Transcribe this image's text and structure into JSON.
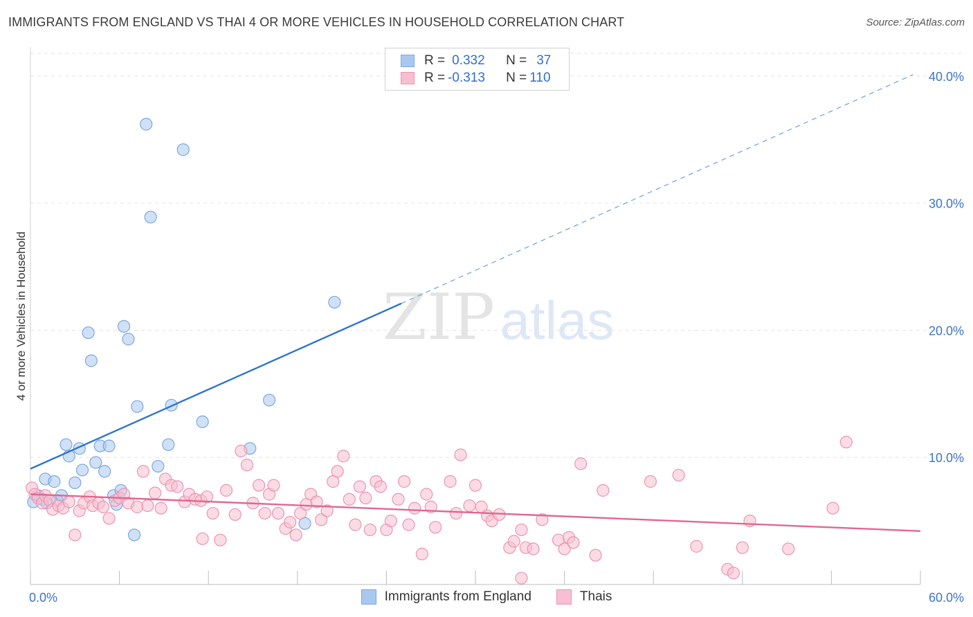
{
  "header": {
    "title": "IMMIGRANTS FROM ENGLAND VS THAI 4 OR MORE VEHICLES IN HOUSEHOLD CORRELATION CHART",
    "source": "Source: ZipAtlas.com"
  },
  "watermark": {
    "zip": "ZIP",
    "atlas": "atlas"
  },
  "legend": {
    "series": [
      {
        "r_label": "R =",
        "r_value": "0.332",
        "n_label": "N =",
        "n_value": "37",
        "color": "#a9c8f0",
        "border": "#7aa7e0"
      },
      {
        "r_label": "R =",
        "r_value": "-0.313",
        "n_label": "N =",
        "n_value": "110",
        "color": "#f7bfd0",
        "border": "#ec94b0"
      }
    ]
  },
  "bottom_legend": [
    "Immigrants from England",
    "Thais"
  ],
  "chart_data": {
    "type": "scatter",
    "title": "IMMIGRANTS FROM ENGLAND VS THAI 4 OR MORE VEHICLES IN HOUSEHOLD CORRELATION CHART",
    "xlabel": "",
    "ylabel": "4 or more Vehicles in Household",
    "xlim": [
      0,
      60
    ],
    "ylim": [
      0,
      42
    ],
    "x_tick_labels": [
      {
        "value": 0,
        "label": "0.0%"
      },
      {
        "value": 60,
        "label": "60.0%"
      }
    ],
    "y_tick_labels": [
      {
        "value": 10,
        "label": "10.0%"
      },
      {
        "value": 20,
        "label": "20.0%"
      },
      {
        "value": 30,
        "label": "30.0%"
      },
      {
        "value": 40,
        "label": "40.0%"
      }
    ],
    "grid": true,
    "legend_position": "top-center",
    "series": [
      {
        "name": "Immigrants from England",
        "color": "#7aa7e0",
        "fill": "#a9c8f0",
        "trend": {
          "solid": [
            [
              0,
              9.1
            ],
            [
              25,
              22.1
            ]
          ],
          "dashed": [
            [
              25,
              22.1
            ],
            [
              59.5,
              40.1
            ]
          ],
          "color": "#2f74d0"
        },
        "points": [
          [
            0.2,
            6.5
          ],
          [
            0.5,
            7.0
          ],
          [
            0.8,
            6.7
          ],
          [
            1.0,
            8.3
          ],
          [
            1.1,
            6.4
          ],
          [
            1.6,
            8.1
          ],
          [
            1.8,
            6.6
          ],
          [
            2.1,
            7.0
          ],
          [
            2.4,
            11.0
          ],
          [
            2.6,
            10.1
          ],
          [
            3.0,
            8.0
          ],
          [
            3.3,
            10.7
          ],
          [
            3.5,
            9.0
          ],
          [
            3.9,
            19.8
          ],
          [
            4.1,
            17.6
          ],
          [
            4.4,
            9.6
          ],
          [
            4.7,
            10.9
          ],
          [
            5.0,
            8.9
          ],
          [
            5.3,
            10.9
          ],
          [
            5.6,
            7.0
          ],
          [
            5.8,
            6.3
          ],
          [
            6.1,
            7.4
          ],
          [
            6.3,
            20.3
          ],
          [
            6.6,
            19.3
          ],
          [
            7.0,
            3.9
          ],
          [
            7.2,
            14.0
          ],
          [
            7.8,
            36.2
          ],
          [
            8.1,
            28.9
          ],
          [
            8.6,
            9.3
          ],
          [
            9.3,
            11.0
          ],
          [
            9.5,
            14.1
          ],
          [
            10.3,
            34.2
          ],
          [
            11.6,
            12.8
          ],
          [
            14.8,
            10.7
          ],
          [
            16.1,
            14.5
          ],
          [
            18.5,
            4.8
          ],
          [
            20.5,
            22.2
          ]
        ]
      },
      {
        "name": "Thais",
        "color": "#ec94b0",
        "fill": "#f7bfd0",
        "trend": {
          "solid": [
            [
              0,
              7.1
            ],
            [
              60,
              4.2
            ]
          ],
          "color": "#e0678f"
        },
        "points": [
          [
            0.1,
            7.6
          ],
          [
            0.3,
            7.1
          ],
          [
            0.5,
            6.8
          ],
          [
            0.8,
            6.4
          ],
          [
            1.0,
            7.0
          ],
          [
            1.3,
            6.6
          ],
          [
            1.5,
            5.9
          ],
          [
            1.9,
            6.2
          ],
          [
            2.2,
            6.0
          ],
          [
            2.6,
            6.5
          ],
          [
            3.0,
            3.9
          ],
          [
            3.3,
            5.8
          ],
          [
            3.6,
            6.4
          ],
          [
            4.0,
            6.9
          ],
          [
            4.2,
            6.2
          ],
          [
            4.6,
            6.4
          ],
          [
            4.9,
            6.1
          ],
          [
            5.3,
            5.2
          ],
          [
            5.7,
            6.6
          ],
          [
            6.0,
            6.8
          ],
          [
            6.3,
            7.1
          ],
          [
            6.6,
            6.4
          ],
          [
            7.2,
            6.1
          ],
          [
            7.6,
            8.9
          ],
          [
            7.9,
            6.2
          ],
          [
            8.4,
            7.2
          ],
          [
            8.8,
            6.0
          ],
          [
            9.1,
            8.3
          ],
          [
            9.5,
            7.8
          ],
          [
            9.9,
            7.7
          ],
          [
            10.4,
            6.5
          ],
          [
            10.7,
            7.1
          ],
          [
            11.1,
            6.7
          ],
          [
            11.5,
            6.6
          ],
          [
            11.9,
            6.9
          ],
          [
            12.3,
            5.6
          ],
          [
            12.8,
            3.5
          ],
          [
            13.2,
            7.4
          ],
          [
            13.8,
            5.5
          ],
          [
            14.2,
            10.5
          ],
          [
            14.6,
            9.4
          ],
          [
            15.0,
            6.4
          ],
          [
            15.4,
            7.8
          ],
          [
            15.8,
            5.6
          ],
          [
            16.1,
            7.1
          ],
          [
            16.4,
            7.8
          ],
          [
            16.7,
            5.6
          ],
          [
            17.2,
            4.4
          ],
          [
            17.5,
            4.9
          ],
          [
            17.9,
            3.9
          ],
          [
            18.2,
            5.6
          ],
          [
            18.6,
            6.3
          ],
          [
            18.9,
            7.1
          ],
          [
            19.3,
            6.5
          ],
          [
            19.6,
            5.1
          ],
          [
            20.0,
            5.8
          ],
          [
            20.4,
            8.1
          ],
          [
            20.7,
            8.9
          ],
          [
            21.1,
            10.1
          ],
          [
            21.5,
            6.7
          ],
          [
            21.9,
            4.7
          ],
          [
            22.2,
            7.7
          ],
          [
            22.6,
            6.8
          ],
          [
            22.9,
            4.3
          ],
          [
            23.3,
            8.1
          ],
          [
            23.6,
            7.7
          ],
          [
            24.0,
            4.3
          ],
          [
            24.3,
            5.0
          ],
          [
            24.8,
            6.7
          ],
          [
            25.2,
            8.1
          ],
          [
            25.5,
            4.7
          ],
          [
            25.9,
            6.0
          ],
          [
            26.4,
            2.4
          ],
          [
            26.7,
            7.1
          ],
          [
            27.0,
            6.1
          ],
          [
            27.3,
            4.5
          ],
          [
            28.3,
            8.1
          ],
          [
            28.7,
            5.6
          ],
          [
            29.0,
            10.2
          ],
          [
            29.6,
            6.2
          ],
          [
            30.0,
            7.8
          ],
          [
            30.4,
            6.1
          ],
          [
            30.8,
            5.4
          ],
          [
            31.1,
            5.0
          ],
          [
            31.6,
            5.5
          ],
          [
            32.3,
            2.9
          ],
          [
            32.6,
            3.4
          ],
          [
            33.1,
            4.3
          ],
          [
            33.4,
            2.9
          ],
          [
            33.9,
            2.8
          ],
          [
            34.5,
            5.1
          ],
          [
            35.6,
            3.5
          ],
          [
            36.0,
            2.8
          ],
          [
            36.3,
            3.7
          ],
          [
            36.6,
            3.3
          ],
          [
            37.1,
            9.5
          ],
          [
            38.1,
            2.3
          ],
          [
            38.6,
            7.4
          ],
          [
            41.8,
            8.1
          ],
          [
            43.7,
            8.6
          ],
          [
            44.9,
            3.0
          ],
          [
            47.0,
            1.2
          ],
          [
            47.4,
            0.9
          ],
          [
            48.0,
            2.9
          ],
          [
            48.5,
            5.0
          ],
          [
            51.1,
            2.8
          ],
          [
            54.1,
            6.0
          ],
          [
            55.0,
            11.2
          ],
          [
            33.1,
            0.5
          ],
          [
            11.6,
            3.6
          ]
        ]
      }
    ]
  }
}
